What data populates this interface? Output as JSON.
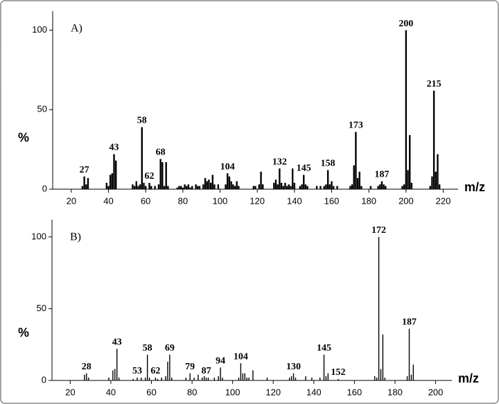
{
  "chart_data": [
    {
      "type": "spectrum",
      "annotation": "A)",
      "y_label": "%",
      "x_label": "m/z",
      "color": "#000000",
      "xlim": [
        10,
        228
      ],
      "ylim": [
        0,
        112
      ],
      "xticks": [
        20,
        40,
        60,
        80,
        100,
        120,
        140,
        160,
        180,
        200,
        220
      ],
      "yticks": [
        0,
        50,
        100
      ],
      "x": [
        26,
        27,
        28,
        29,
        39,
        40,
        41,
        42,
        43,
        44,
        53,
        54,
        55,
        56,
        57,
        58,
        59,
        60,
        62,
        63,
        65,
        67,
        68,
        69,
        70,
        71,
        72,
        77,
        78,
        79,
        80,
        81,
        82,
        83,
        84,
        85,
        87,
        88,
        89,
        91,
        92,
        93,
        94,
        95,
        96,
        97,
        99,
        103,
        104,
        105,
        106,
        107,
        108,
        109,
        110,
        118,
        119,
        121,
        122,
        123,
        129,
        130,
        131,
        132,
        133,
        134,
        135,
        136,
        137,
        138,
        139,
        140,
        143,
        144,
        145,
        146,
        147,
        152,
        154,
        156,
        157,
        158,
        159,
        160,
        161,
        163,
        170,
        171,
        172,
        173,
        174,
        175,
        176,
        181,
        185,
        186,
        187,
        188,
        189,
        198,
        199,
        200,
        201,
        202,
        203,
        213,
        214,
        215,
        216,
        217,
        218
      ],
      "values": [
        2,
        8,
        3,
        7,
        4,
        2,
        9,
        10,
        22,
        18,
        3,
        2,
        5,
        2,
        3,
        39,
        4,
        2,
        4,
        2,
        2,
        3,
        19,
        17,
        2,
        17,
        2,
        1,
        2,
        2,
        1,
        3,
        2,
        3,
        1,
        2,
        3,
        2,
        2,
        3,
        7,
        5,
        6,
        4,
        9,
        3,
        3,
        3,
        10,
        8,
        5,
        3,
        2,
        5,
        2,
        2,
        2,
        3,
        11,
        3,
        4,
        6,
        3,
        13,
        4,
        2,
        4,
        2,
        3,
        2,
        13,
        4,
        2,
        3,
        9,
        3,
        2,
        2,
        2,
        2,
        3,
        12,
        3,
        5,
        2,
        2,
        2,
        3,
        15,
        36,
        7,
        11,
        2,
        2,
        2,
        3,
        5,
        3,
        2,
        2,
        3,
        100,
        12,
        34,
        4,
        2,
        8,
        62,
        11,
        22,
        3
      ],
      "peak_labels": [
        27,
        43,
        58,
        62,
        68,
        104,
        132,
        145,
        158,
        173,
        187,
        200,
        215
      ]
    },
    {
      "type": "spectrum",
      "annotation": "B)",
      "y_label": "%",
      "x_label": "m/z",
      "color": "#000000",
      "xlim": [
        11,
        208
      ],
      "ylim": [
        0,
        112
      ],
      "xticks": [
        20,
        40,
        60,
        80,
        100,
        120,
        140,
        160,
        180,
        200
      ],
      "yticks": [
        0,
        50,
        100
      ],
      "x": [
        27,
        28,
        29,
        39,
        41,
        42,
        43,
        44,
        51,
        53,
        55,
        57,
        58,
        59,
        62,
        63,
        65,
        67,
        68,
        69,
        70,
        77,
        79,
        81,
        83,
        85,
        86,
        87,
        88,
        91,
        93,
        94,
        95,
        103,
        104,
        105,
        106,
        107,
        108,
        110,
        117,
        128,
        129,
        130,
        131,
        136,
        139,
        143,
        145,
        146,
        147,
        152,
        170,
        171,
        172,
        173,
        174,
        175,
        186,
        187,
        188,
        189
      ],
      "values": [
        4,
        5,
        2,
        2,
        7,
        8,
        22,
        2,
        1,
        2,
        2,
        2,
        18,
        2,
        2,
        1,
        2,
        3,
        13,
        18,
        2,
        2,
        5,
        2,
        4,
        2,
        3,
        2,
        2,
        2,
        3,
        9,
        2,
        2,
        12,
        5,
        5,
        2,
        2,
        7,
        2,
        2,
        3,
        5,
        2,
        3,
        2,
        2,
        18,
        3,
        5,
        1,
        3,
        2,
        100,
        8,
        32,
        2,
        3,
        36,
        4,
        11
      ],
      "peak_labels": [
        28,
        43,
        53,
        58,
        62,
        69,
        79,
        87,
        94,
        104,
        130,
        145,
        152,
        172,
        187
      ]
    }
  ]
}
